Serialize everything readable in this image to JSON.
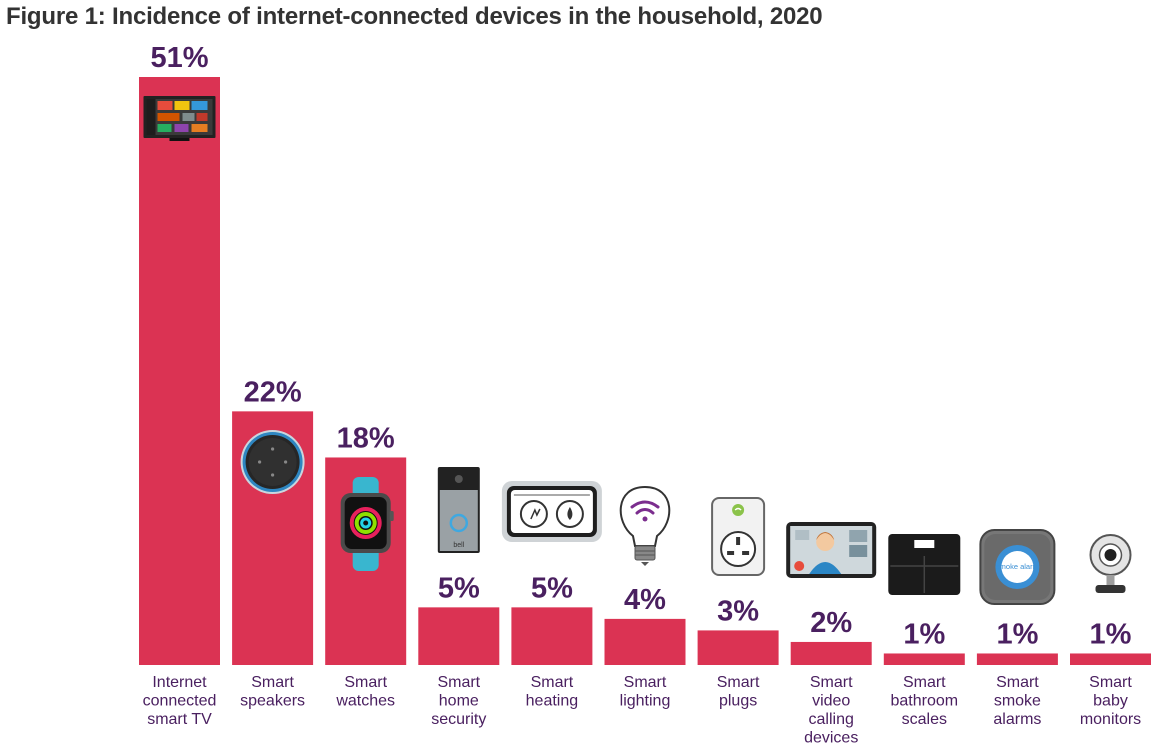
{
  "title": "Figure 1: Incidence of internet-connected devices in the household, 2020",
  "colors": {
    "bar": "#db3353",
    "label": "#4a2060",
    "title": "#333333"
  },
  "chart_data": {
    "type": "bar",
    "title": "Figure 1: Incidence of internet-connected devices in the household, 2020",
    "xlabel": "",
    "ylabel": "",
    "ylim": [
      0,
      51
    ],
    "grid": false,
    "categories": [
      [
        "Internet",
        "connected",
        "smart TV"
      ],
      [
        "Smart",
        "speakers"
      ],
      [
        "Smart",
        "watches"
      ],
      [
        "Smart",
        "home",
        "security"
      ],
      [
        "Smart",
        "heating"
      ],
      [
        "Smart",
        "lighting"
      ],
      [
        "Smart",
        "plugs"
      ],
      [
        "Smart",
        "video",
        "calling",
        "devices"
      ],
      [
        "Smart",
        "bathroom",
        "scales"
      ],
      [
        "Smart",
        "smoke",
        "alarms"
      ],
      [
        "Smart",
        "baby",
        "monitors"
      ]
    ],
    "values": [
      51,
      22,
      18,
      5,
      5,
      4,
      3,
      2,
      1,
      1,
      1
    ],
    "value_labels": [
      "51%",
      "22%",
      "18%",
      "5%",
      "5%",
      "4%",
      "3%",
      "2%",
      "1%",
      "1%",
      "1%"
    ],
    "icons": [
      "smart-tv-icon",
      "smart-speaker-icon",
      "smart-watch-icon",
      "video-doorbell-icon",
      "thermostat-icon",
      "smart-bulb-icon",
      "smart-plug-icon",
      "video-calling-device-icon",
      "bathroom-scale-icon",
      "smoke-alarm-icon",
      "baby-monitor-icon"
    ],
    "icon_text": {
      "doorbell": "bell",
      "smoke_alarm": "smoke alarm"
    }
  }
}
